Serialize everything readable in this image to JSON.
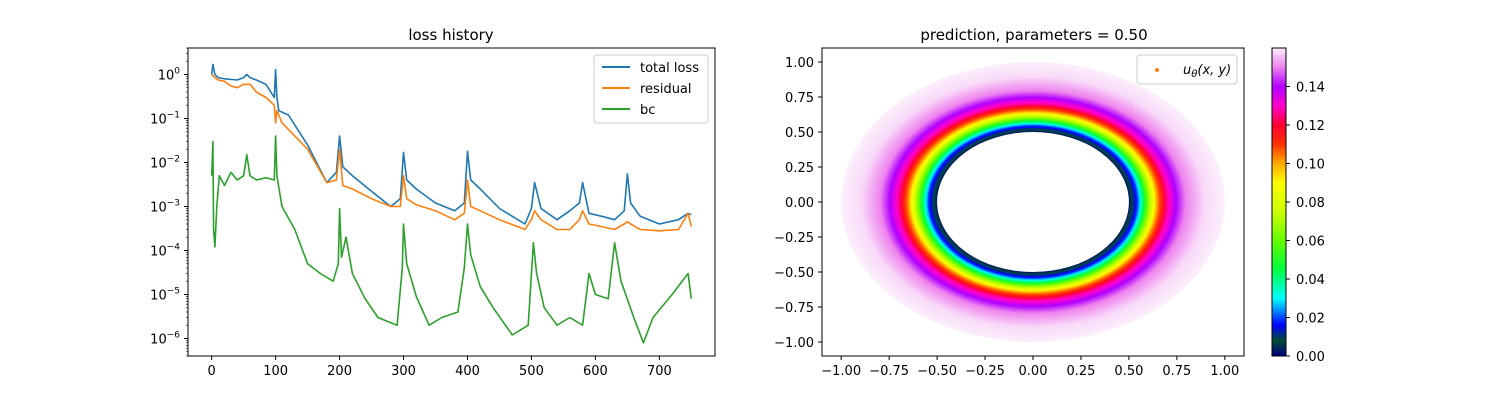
{
  "chart_data": [
    {
      "type": "line",
      "title": "loss history",
      "xlabel": "",
      "ylabel": "",
      "yscale": "log",
      "xlim": [
        -37,
        787
      ],
      "ylim": [
        4e-07,
        4
      ],
      "x_ticks": [
        0,
        100,
        200,
        300,
        400,
        500,
        600,
        700
      ],
      "x_tick_labels": [
        "0",
        "100",
        "200",
        "300",
        "400",
        "500",
        "600",
        "700"
      ],
      "y_ticks": [
        1e-06,
        1e-05,
        0.0001,
        0.001,
        0.01,
        0.1,
        1
      ],
      "y_tick_labels": [
        {
          "base": "10",
          "exp": "−6"
        },
        {
          "base": "10",
          "exp": "−5"
        },
        {
          "base": "10",
          "exp": "−4"
        },
        {
          "base": "10",
          "exp": "−3"
        },
        {
          "base": "10",
          "exp": "−2"
        },
        {
          "base": "10",
          "exp": "−1"
        },
        {
          "base": "10",
          "exp": "0"
        }
      ],
      "legend": "top-right",
      "grid": false,
      "series": [
        {
          "name": "total loss",
          "color": "#1f77b4",
          "x": [
            0,
            2,
            5,
            10,
            20,
            40,
            50,
            55,
            60,
            70,
            85,
            98,
            100,
            102,
            105,
            120,
            150,
            180,
            195,
            200,
            205,
            220,
            250,
            280,
            295,
            300,
            305,
            320,
            350,
            380,
            395,
            400,
            405,
            420,
            450,
            490,
            500,
            505,
            515,
            540,
            560,
            575,
            580,
            590,
            610,
            630,
            645,
            650,
            655,
            670,
            700,
            730,
            745,
            750
          ],
          "y": [
            1.0,
            1.7,
            1.0,
            0.85,
            0.8,
            0.75,
            0.85,
            1.0,
            0.85,
            0.75,
            0.6,
            0.3,
            1.3,
            0.3,
            0.15,
            0.12,
            0.025,
            0.0035,
            0.006,
            0.04,
            0.008,
            0.005,
            0.0022,
            0.001,
            0.0015,
            0.017,
            0.004,
            0.0025,
            0.0012,
            0.0008,
            0.0012,
            0.018,
            0.004,
            0.0025,
            0.0009,
            0.0004,
            0.0009,
            0.0035,
            0.0009,
            0.0005,
            0.0008,
            0.0012,
            0.0035,
            0.0007,
            0.0006,
            0.0005,
            0.0008,
            0.0055,
            0.0012,
            0.0006,
            0.0004,
            0.0005,
            0.0007,
            0.00065
          ]
        },
        {
          "name": "residual",
          "color": "#ff7f0e",
          "x": [
            0,
            5,
            10,
            20,
            30,
            40,
            50,
            60,
            70,
            85,
            98,
            100,
            102,
            110,
            150,
            180,
            195,
            200,
            205,
            220,
            250,
            280,
            295,
            300,
            305,
            320,
            350,
            380,
            395,
            400,
            405,
            420,
            450,
            490,
            500,
            505,
            515,
            540,
            560,
            575,
            580,
            590,
            610,
            630,
            645,
            650,
            655,
            670,
            700,
            730,
            745,
            750
          ],
          "y": [
            1.0,
            0.85,
            0.75,
            0.7,
            0.55,
            0.5,
            0.6,
            0.6,
            0.4,
            0.3,
            0.2,
            0.08,
            0.15,
            0.08,
            0.02,
            0.0035,
            0.004,
            0.02,
            0.003,
            0.0025,
            0.0015,
            0.001,
            0.001,
            0.005,
            0.0015,
            0.0011,
            0.0008,
            0.0005,
            0.0007,
            0.004,
            0.001,
            0.0008,
            0.0005,
            0.0003,
            0.0005,
            0.0008,
            0.0005,
            0.0003,
            0.0003,
            0.0005,
            0.0008,
            0.0004,
            0.00035,
            0.0003,
            0.0004,
            0.00045,
            0.0004,
            0.0003,
            0.00028,
            0.0003,
            0.0007,
            0.00035
          ]
        },
        {
          "name": "bc",
          "color": "#2ca02c",
          "x": [
            0,
            2,
            3,
            5,
            8,
            12,
            20,
            30,
            40,
            50,
            55,
            60,
            70,
            85,
            98,
            100,
            102,
            110,
            130,
            150,
            170,
            190,
            198,
            200,
            203,
            210,
            220,
            240,
            260,
            290,
            298,
            300,
            305,
            320,
            340,
            360,
            385,
            395,
            400,
            405,
            420,
            440,
            470,
            495,
            503,
            508,
            520,
            540,
            560,
            580,
            590,
            600,
            620,
            630,
            640,
            660,
            675,
            690,
            720,
            745,
            750
          ],
          "y": [
            0.005,
            0.03,
            0.0003,
            0.00012,
            0.001,
            0.005,
            0.003,
            0.006,
            0.004,
            0.005,
            0.015,
            0.005,
            0.004,
            0.0045,
            0.004,
            0.04,
            0.005,
            0.001,
            0.0003,
            5e-05,
            3e-05,
            2e-05,
            5e-05,
            0.0009,
            7e-05,
            0.0002,
            3e-05,
            8e-06,
            3e-06,
            2e-06,
            4e-05,
            0.0004,
            5e-05,
            9e-06,
            2e-06,
            3e-06,
            4e-06,
            4e-05,
            0.0004,
            8e-05,
            1.5e-05,
            5e-06,
            1.2e-06,
            2e-06,
            0.00015,
            3e-05,
            5e-06,
            2e-06,
            3e-06,
            2e-06,
            3e-05,
            1e-05,
            8e-06,
            0.00015,
            2e-05,
            3e-06,
            8e-07,
            3e-06,
            1e-05,
            3e-05,
            8e-06
          ]
        }
      ]
    },
    {
      "type": "scatter",
      "title": "prediction, parameters = 0.50",
      "xlim": [
        -1.1,
        1.1
      ],
      "ylim": [
        -1.1,
        1.1
      ],
      "x_ticks": [
        -1.0,
        -0.75,
        -0.5,
        -0.25,
        0.0,
        0.25,
        0.5,
        0.75,
        1.0
      ],
      "x_tick_labels": [
        "−1.00",
        "−0.75",
        "−0.50",
        "−0.25",
        "0.00",
        "0.25",
        "0.50",
        "0.75",
        "1.00"
      ],
      "y_ticks": [
        -1.0,
        -0.75,
        -0.5,
        -0.25,
        0.0,
        0.25,
        0.5,
        0.75,
        1.0
      ],
      "y_tick_labels": [
        "−1.00",
        "−0.75",
        "−0.50",
        "−0.25",
        "0.00",
        "0.25",
        "0.50",
        "0.75",
        "1.00"
      ],
      "series": [
        {
          "name_parts": {
            "u": "u",
            "theta": "θ",
            "args": "(x, y)"
          },
          "marker_color": "#ff7f0e",
          "domain": "annulus",
          "inner_radius": 0.5,
          "outer_radius": 1.0,
          "value_profile": [
            {
              "r": 0.5,
              "u": 0.0
            },
            {
              "r": 0.55,
              "u": 0.02
            },
            {
              "r": 0.6,
              "u": 0.06
            },
            {
              "r": 0.65,
              "u": 0.1
            },
            {
              "r": 0.7,
              "u": 0.125
            },
            {
              "r": 0.75,
              "u": 0.14
            },
            {
              "r": 0.8,
              "u": 0.15
            },
            {
              "r": 0.9,
              "u": 0.158
            },
            {
              "r": 1.0,
              "u": 0.16
            }
          ]
        }
      ],
      "legend": "top-right",
      "colorbar": {
        "colormap": "gist_ncar",
        "range": [
          0.0,
          0.16
        ],
        "ticks": [
          0.0,
          0.02,
          0.04,
          0.06,
          0.08,
          0.1,
          0.12,
          0.14
        ],
        "tick_labels": [
          "0.00",
          "0.02",
          "0.04",
          "0.06",
          "0.08",
          "0.10",
          "0.12",
          "0.14"
        ],
        "stops": [
          {
            "v": 0.0,
            "color": "#000080"
          },
          {
            "v": 0.008,
            "color": "#004d33"
          },
          {
            "v": 0.016,
            "color": "#0000ff"
          },
          {
            "v": 0.03,
            "color": "#00ffff"
          },
          {
            "v": 0.045,
            "color": "#00ff40"
          },
          {
            "v": 0.06,
            "color": "#66ff00"
          },
          {
            "v": 0.075,
            "color": "#ccff00"
          },
          {
            "v": 0.09,
            "color": "#ffff00"
          },
          {
            "v": 0.1,
            "color": "#ffaa00"
          },
          {
            "v": 0.11,
            "color": "#ff3300"
          },
          {
            "v": 0.12,
            "color": "#ff0033"
          },
          {
            "v": 0.13,
            "color": "#ff00cc"
          },
          {
            "v": 0.14,
            "color": "#b000ff"
          },
          {
            "v": 0.15,
            "color": "#ee82ee"
          },
          {
            "v": 0.16,
            "color": "#fbeffb"
          }
        ]
      }
    }
  ]
}
